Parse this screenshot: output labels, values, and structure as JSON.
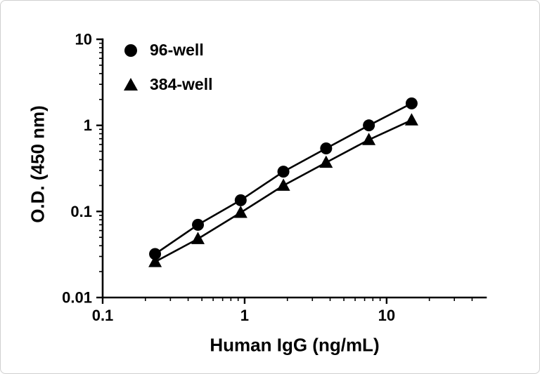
{
  "page": {
    "background_color": "#ffffff",
    "border_color": "#cfcfcf"
  },
  "chart_data": {
    "type": "line",
    "title": "",
    "xlabel": "Human IgG (ng/mL)",
    "ylabel": "O.D. (450 nm)",
    "xscale": "log",
    "yscale": "log",
    "xlim": [
      0.1,
      50
    ],
    "ylim": [
      0.01,
      10
    ],
    "x_major_ticks": [
      0.1,
      1,
      10
    ],
    "y_major_ticks": [
      0.01,
      0.1,
      1,
      10
    ],
    "grid": false,
    "legend_position": "upper-left-inside",
    "line_color": "#000000",
    "series": [
      {
        "name": "96-well",
        "marker": "circle",
        "color": "#000000",
        "x": [
          0.234,
          0.469,
          0.938,
          1.875,
          3.75,
          7.5,
          15
        ],
        "y": [
          0.032,
          0.07,
          0.135,
          0.29,
          0.54,
          1.0,
          1.8
        ]
      },
      {
        "name": "384-well",
        "marker": "triangle",
        "color": "#000000",
        "x": [
          0.234,
          0.469,
          0.938,
          1.875,
          3.75,
          7.5,
          15
        ],
        "y": [
          0.026,
          0.048,
          0.097,
          0.2,
          0.37,
          0.68,
          1.15
        ]
      }
    ]
  }
}
